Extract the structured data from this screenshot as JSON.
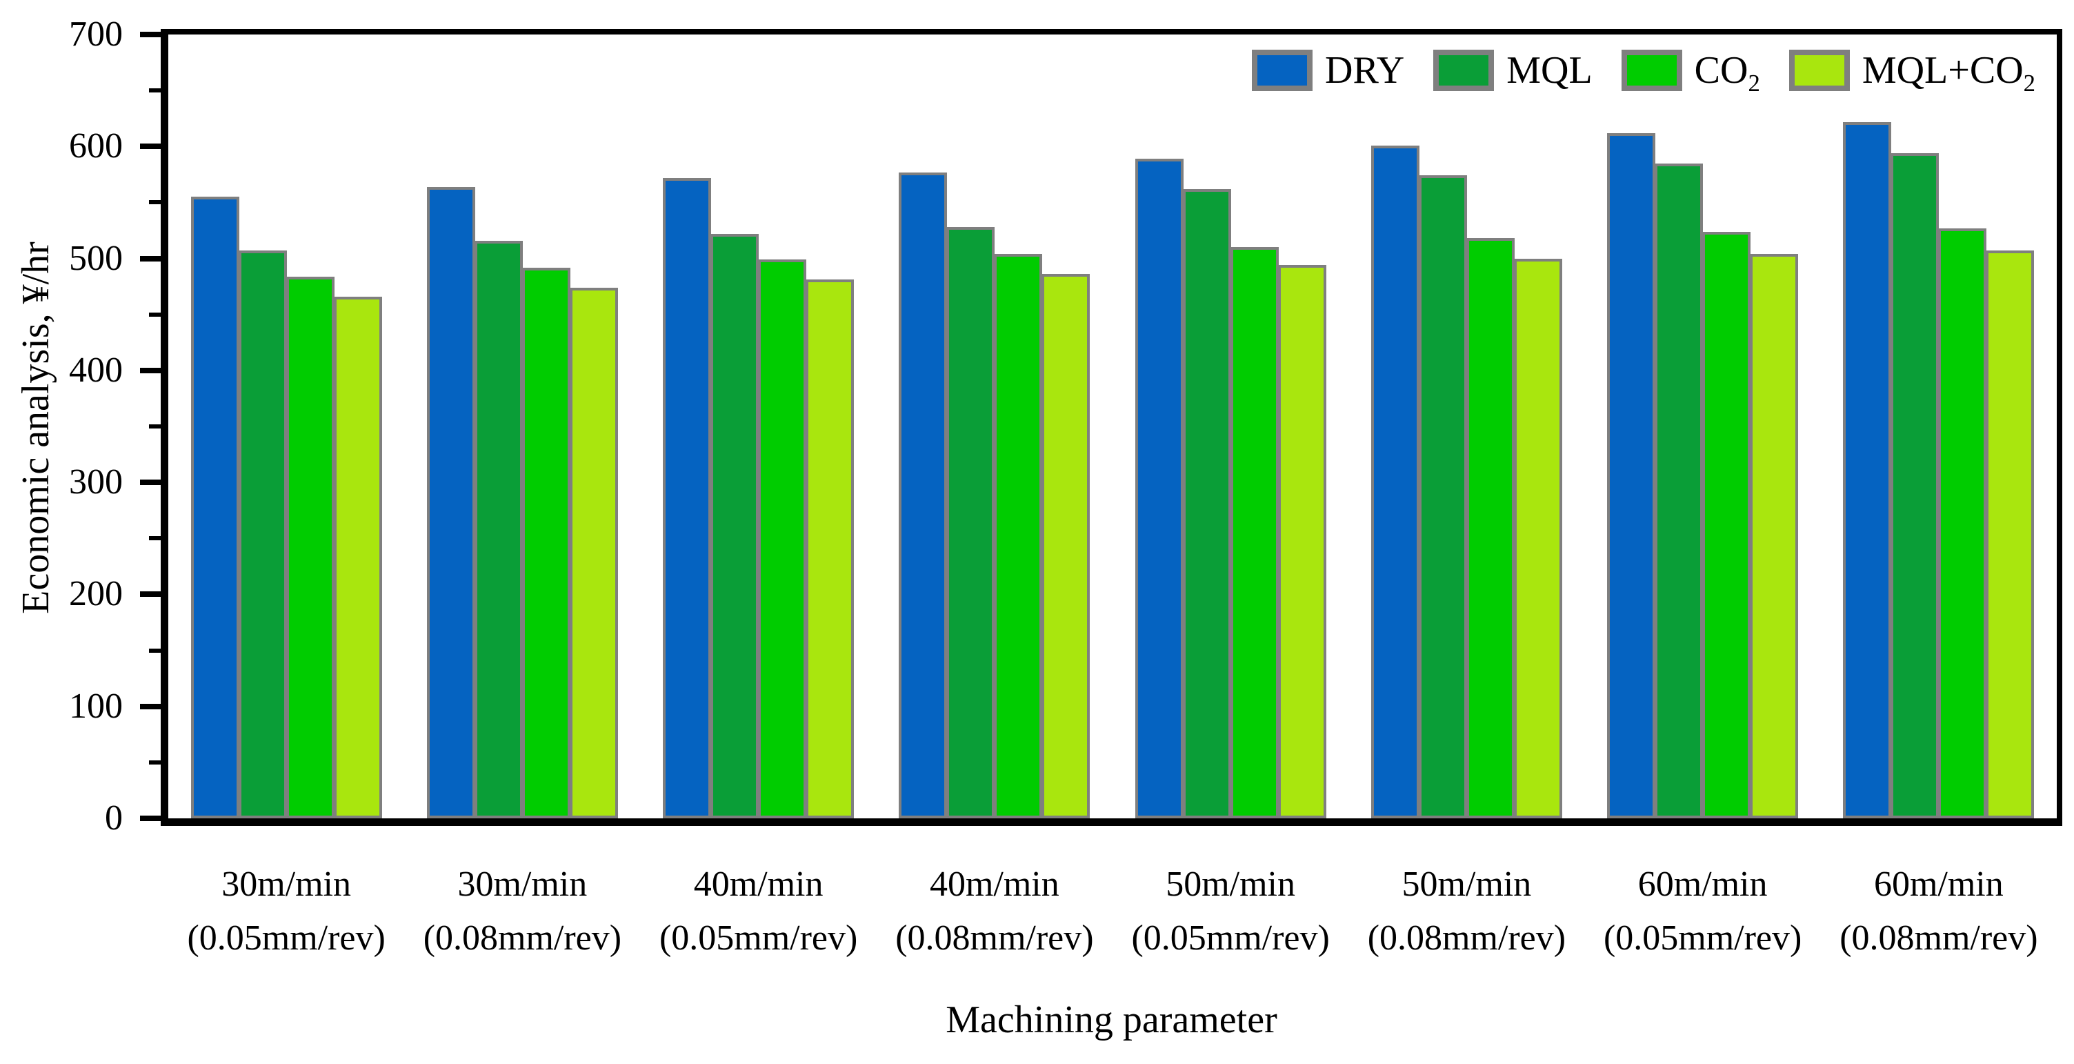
{
  "figure": {
    "xlabel": "Machining parameter",
    "ylabel": "Economic analysis, ¥/hr"
  },
  "legend": {
    "position": "top-right-inside",
    "items": [
      {
        "label": "DRY",
        "sub": "",
        "color": "#0563c1"
      },
      {
        "label": "MQL",
        "sub": "",
        "color": "#0a9e37"
      },
      {
        "label": "CO",
        "sub": "2",
        "color": "#00cc00"
      },
      {
        "label": "MQL+CO",
        "sub": "2",
        "color": "#a9e60e"
      }
    ]
  },
  "chart_data": {
    "type": "bar",
    "title": "",
    "xlabel": "Machining parameter",
    "ylabel": "Economic analysis, ¥/hr",
    "ylim": [
      0,
      700
    ],
    "yticks": [
      "0",
      "100",
      "200",
      "300",
      "400",
      "500",
      "600",
      "700"
    ],
    "minor_tick_step": 50,
    "grid": false,
    "legend_position": "top-right-inside",
    "bar_border_color": "#7f7f7f",
    "axis_color": "#000000",
    "categories": [
      {
        "line1": "30m/min",
        "line2": "(0.05mm/rev)"
      },
      {
        "line1": "30m/min",
        "line2": "(0.08mm/rev)"
      },
      {
        "line1": "40m/min",
        "line2": "(0.05mm/rev)"
      },
      {
        "line1": "40m/min",
        "line2": "(0.08mm/rev)"
      },
      {
        "line1": "50m/min",
        "line2": "(0.05mm/rev)"
      },
      {
        "line1": "50m/min",
        "line2": "(0.08mm/rev)"
      },
      {
        "line1": "60m/min",
        "line2": "(0.05mm/rev)"
      },
      {
        "line1": "60m/min",
        "line2": "(0.08mm/rev)"
      }
    ],
    "series": [
      {
        "name": "DRY",
        "color": "#0563c1",
        "values": [
          555,
          564,
          572,
          577,
          589,
          601,
          612,
          622
        ]
      },
      {
        "name": "MQL",
        "color": "#0a9e37",
        "values": [
          507,
          516,
          522,
          528,
          562,
          574,
          585,
          594
        ]
      },
      {
        "name": "CO2",
        "color": "#00cc00",
        "values": [
          484,
          492,
          499,
          504,
          510,
          518,
          524,
          527
        ]
      },
      {
        "name": "MQL+CO2",
        "color": "#a9e60e",
        "values": [
          466,
          474,
          481,
          486,
          494,
          500,
          504,
          507
        ]
      }
    ]
  }
}
